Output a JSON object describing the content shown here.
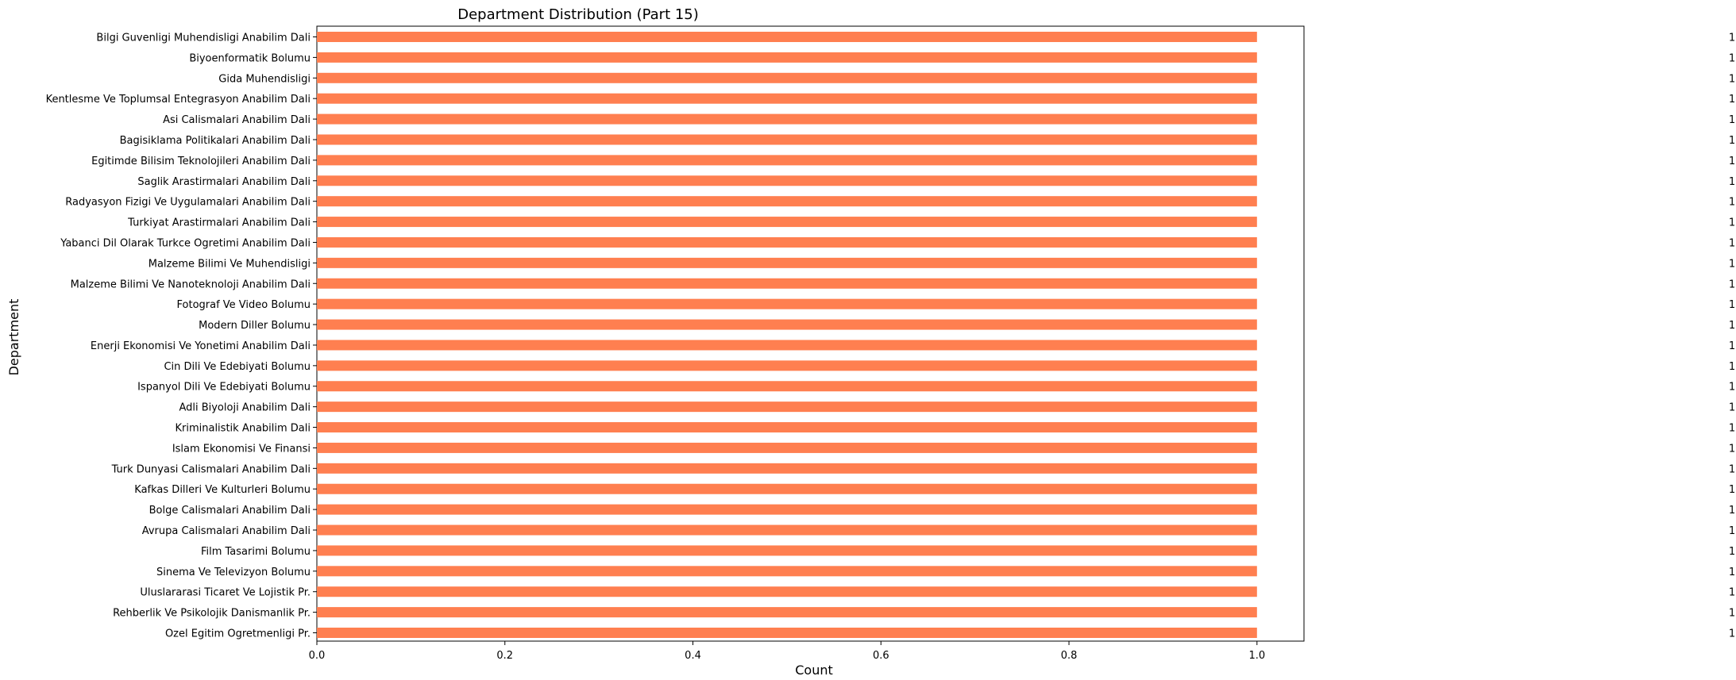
{
  "chart_data": {
    "type": "bar",
    "orientation": "horizontal",
    "title": "Department Distribution (Part 15)",
    "xlabel": "Count",
    "ylabel": "Department",
    "xlim": [
      0,
      1.05
    ],
    "xticks": [
      "0.0",
      "0.2",
      "0.4",
      "0.6",
      "0.8",
      "1.0"
    ],
    "bar_color": "#ff7f50",
    "grid": false,
    "categories": [
      "Bilgi Guvenligi Muhendisligi Anabilim Dali",
      "Biyoenformatik Bolumu",
      "Gida Muhendisligi",
      "Kentlesme Ve Toplumsal Entegrasyon Anabilim Dali",
      "Asi Calismalari Anabilim Dali",
      "Bagisiklama Politikalari Anabilim Dali",
      "Egitimde Bilisim Teknolojileri Anabilim Dali",
      "Saglik Arastirmalari Anabilim Dali",
      "Radyasyon Fizigi Ve Uygulamalari Anabilim Dali",
      "Turkiyat Arastirmalari Anabilim Dali",
      "Yabanci Dil Olarak Turkce Ogretimi Anabilim Dali",
      "Malzeme Bilimi Ve Muhendisligi",
      "Malzeme Bilimi Ve Nanoteknoloji Anabilim Dali",
      "Fotograf Ve Video Bolumu",
      "Modern Diller Bolumu",
      "Enerji Ekonomisi Ve Yonetimi Anabilim Dali",
      "Cin Dili Ve Edebiyati Bolumu",
      "Ispanyol Dili Ve Edebiyati Bolumu",
      "Adli Biyoloji Anabilim Dali",
      "Kriminalistik Anabilim Dali",
      "Islam Ekonomisi Ve Finansi",
      "Turk Dunyasi Calismalari Anabilim Dali",
      "Kafkas Dilleri Ve Kulturleri Bolumu",
      "Bolge Calismalari Anabilim Dali",
      "Avrupa Calismalari Anabilim Dali",
      "Film Tasarimi Bolumu",
      "Sinema Ve Televizyon Bolumu",
      "Uluslararasi Ticaret Ve Lojistik Pr.",
      "Rehberlik Ve Psikolojik Danismanlik Pr.",
      "Ozel Egitim Ogretmenligi Pr."
    ],
    "values": [
      1,
      1,
      1,
      1,
      1,
      1,
      1,
      1,
      1,
      1,
      1,
      1,
      1,
      1,
      1,
      1,
      1,
      1,
      1,
      1,
      1,
      1,
      1,
      1,
      1,
      1,
      1,
      1,
      1,
      1
    ],
    "data_labels": [
      "1",
      "1",
      "1",
      "1",
      "1",
      "1",
      "1",
      "1",
      "1",
      "1",
      "1",
      "1",
      "1",
      "1",
      "1",
      "1",
      "1",
      "1",
      "1",
      "1",
      "1",
      "1",
      "1",
      "1",
      "1",
      "1",
      "1",
      "1",
      "1",
      "1"
    ]
  }
}
